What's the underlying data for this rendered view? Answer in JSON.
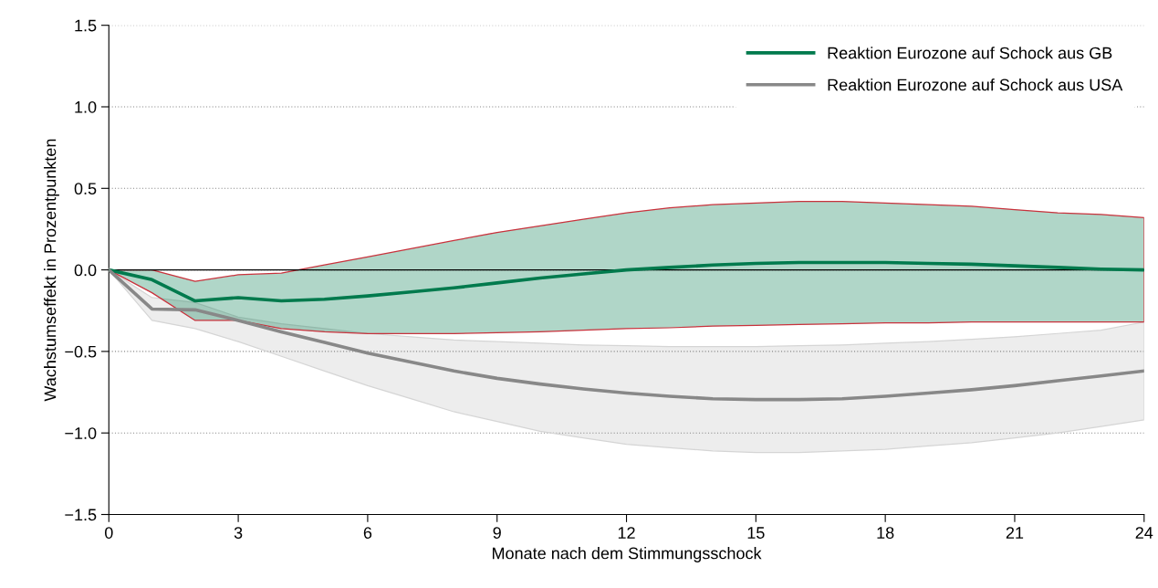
{
  "chart_data": {
    "type": "line",
    "xlabel": "Monate nach dem Stimmungsschock",
    "ylabel": "Wachstumseffekt in Prozentpunkten",
    "x": [
      0,
      1,
      2,
      3,
      4,
      5,
      6,
      7,
      8,
      9,
      10,
      11,
      12,
      13,
      14,
      15,
      16,
      17,
      18,
      19,
      20,
      21,
      22,
      23,
      24
    ],
    "series": [
      {
        "name": "Reaktion Eurozone auf Schock aus GB",
        "color": "#007a4d",
        "values": [
          0,
          -0.06,
          -0.19,
          -0.17,
          -0.19,
          -0.18,
          -0.16,
          -0.135,
          -0.11,
          -0.08,
          -0.05,
          -0.025,
          0.0,
          0.015,
          0.03,
          0.04,
          0.045,
          0.045,
          0.045,
          0.04,
          0.035,
          0.025,
          0.015,
          0.005,
          0.0
        ],
        "upper": [
          0,
          0.0,
          -0.07,
          -0.03,
          -0.02,
          0.03,
          0.08,
          0.13,
          0.18,
          0.23,
          0.27,
          0.31,
          0.35,
          0.38,
          0.4,
          0.41,
          0.42,
          0.42,
          0.41,
          0.4,
          0.39,
          0.37,
          0.35,
          0.34,
          0.32
        ],
        "lower": [
          0,
          -0.14,
          -0.31,
          -0.31,
          -0.36,
          -0.38,
          -0.39,
          -0.39,
          -0.39,
          -0.385,
          -0.38,
          -0.37,
          -0.36,
          -0.355,
          -0.345,
          -0.34,
          -0.335,
          -0.33,
          -0.325,
          -0.325,
          -0.32,
          -0.32,
          -0.32,
          -0.32,
          -0.32
        ]
      },
      {
        "name": "Reaktion Eurozone auf Schock aus USA",
        "color": "#888888",
        "values": [
          0,
          -0.24,
          -0.245,
          -0.31,
          -0.38,
          -0.445,
          -0.51,
          -0.565,
          -0.62,
          -0.665,
          -0.7,
          -0.73,
          -0.755,
          -0.775,
          -0.79,
          -0.795,
          -0.795,
          -0.79,
          -0.775,
          -0.755,
          -0.735,
          -0.71,
          -0.68,
          -0.65,
          -0.62
        ],
        "upper": [
          0,
          -0.17,
          -0.2,
          -0.29,
          -0.33,
          -0.36,
          -0.39,
          -0.41,
          -0.43,
          -0.44,
          -0.45,
          -0.46,
          -0.465,
          -0.47,
          -0.47,
          -0.47,
          -0.465,
          -0.46,
          -0.45,
          -0.44,
          -0.425,
          -0.41,
          -0.39,
          -0.37,
          -0.32
        ],
        "lower": [
          0,
          -0.31,
          -0.36,
          -0.44,
          -0.53,
          -0.62,
          -0.71,
          -0.79,
          -0.87,
          -0.93,
          -0.99,
          -1.03,
          -1.07,
          -1.09,
          -1.11,
          -1.12,
          -1.12,
          -1.11,
          -1.1,
          -1.08,
          -1.06,
          -1.03,
          -1.0,
          -0.96,
          -0.92
        ]
      }
    ],
    "xlim": [
      0,
      24
    ],
    "xticks": [
      0,
      3,
      6,
      9,
      12,
      15,
      18,
      21,
      24
    ],
    "ylim": [
      -1.5,
      1.5
    ],
    "yticks": [
      {
        "value": -1.5,
        "label": "−1.5"
      },
      {
        "value": -1.0,
        "label": "−1.0"
      },
      {
        "value": -0.5,
        "label": "−0.5"
      },
      {
        "value": 0,
        "label": "0.0"
      },
      0.5,
      {
        "value": 1.0,
        "label": "1.0"
      },
      1.5
    ],
    "ref_lines": [
      {
        "axis": "y",
        "value": 0,
        "color": "#000000"
      }
    ],
    "grid": "y",
    "legend": "top right",
    "marker": "none",
    "line_style": "solid"
  }
}
